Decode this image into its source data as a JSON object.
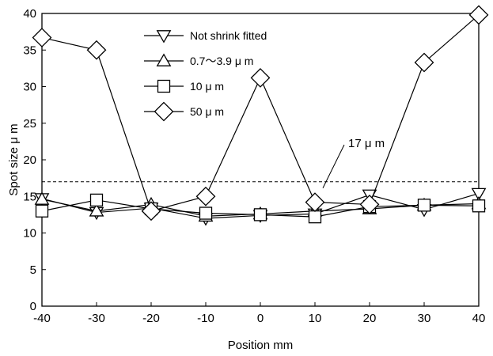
{
  "chart_data": {
    "type": "line",
    "xlabel": "Position mm",
    "ylabel": "Spot size μ m",
    "xlim": [
      -40,
      40
    ],
    "ylim": [
      0,
      40
    ],
    "xticks": [
      -40,
      -30,
      -20,
      -10,
      0,
      10,
      20,
      30,
      40
    ],
    "yticks": [
      0,
      5,
      10,
      15,
      20,
      25,
      30,
      35,
      40
    ],
    "x": [
      -40,
      -30,
      -20,
      -10,
      0,
      10,
      20,
      30,
      40
    ],
    "series": [
      {
        "name": "Not shrink fitted",
        "marker": "triangle-down",
        "values": [
          14.7,
          12.8,
          13.4,
          12.0,
          12.4,
          12.6,
          15.2,
          13.2,
          15.4
        ]
      },
      {
        "name": "0.7〜3.9 μ m",
        "marker": "triangle-up",
        "values": [
          14.6,
          13.0,
          13.9,
          12.3,
          12.6,
          13.0,
          13.3,
          13.8,
          14.0
        ]
      },
      {
        "name": "10 μ m",
        "marker": "square",
        "values": [
          13.0,
          14.5,
          13.3,
          12.7,
          12.5,
          12.2,
          13.6,
          13.8,
          13.7
        ]
      },
      {
        "name": "50 μ m",
        "marker": "diamond",
        "values": [
          36.7,
          35.0,
          13.0,
          15.0,
          31.2,
          14.2,
          13.9,
          33.3,
          39.8
        ]
      }
    ],
    "reference_line": {
      "y": 17,
      "label": "17 μ m",
      "style": "dashed"
    },
    "legend_position": "top-left",
    "grid": false
  }
}
